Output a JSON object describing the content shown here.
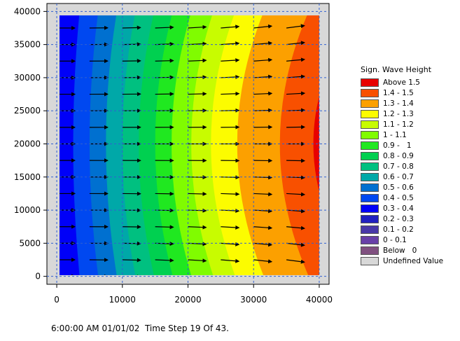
{
  "chart_data": {
    "type": "heatmap",
    "title": "",
    "xlabel": "",
    "ylabel": "",
    "xlim": [
      -1500,
      41500
    ],
    "ylim": [
      -1200,
      41200
    ],
    "x_ticks": [
      0,
      10000,
      20000,
      30000,
      40000
    ],
    "x_tick_labels": [
      "0",
      "10000",
      "20000",
      "30000",
      "40000"
    ],
    "y_ticks": [
      0,
      5000,
      10000,
      15000,
      20000,
      25000,
      30000,
      35000,
      40000
    ],
    "y_tick_labels": [
      "0",
      "5000",
      "10000",
      "15000",
      "20000",
      "25000",
      "30000",
      "35000",
      "40000"
    ],
    "grid": true,
    "data_extent": {
      "x": [
        0,
        40000
      ],
      "y": [
        0,
        40000
      ]
    },
    "legend_position": "right",
    "legend": {
      "title": "Sign. Wave Height",
      "entries": [
        {
          "label": "Above 1.5",
          "color": "#e80000"
        },
        {
          "label": "1.4 - 1.5",
          "color": "#f85000"
        },
        {
          "label": "1.3 - 1.4",
          "color": "#fca000"
        },
        {
          "label": "1.2 - 1.3",
          "color": "#fcfc00"
        },
        {
          "label": "1.1 - 1.2",
          "color": "#c8fc00"
        },
        {
          "label": "1 - 1.1",
          "color": "#80fc00"
        },
        {
          "label": "0.9 -   1",
          "color": "#20e820"
        },
        {
          "label": "0.8 - 0.9",
          "color": "#00d050"
        },
        {
          "label": "0.7 - 0.8",
          "color": "#00c080"
        },
        {
          "label": "0.6 - 0.7",
          "color": "#00a8a8"
        },
        {
          "label": "0.5 - 0.6",
          "color": "#0070d0"
        },
        {
          "label": "0.4 - 0.5",
          "color": "#0048f0"
        },
        {
          "label": "0.3 - 0.4",
          "color": "#0000f8"
        },
        {
          "label": "0.2 - 0.3",
          "color": "#2020c0"
        },
        {
          "label": "0.1 - 0.2",
          "color": "#4838a8"
        },
        {
          "label": "0 - 0.1",
          "color": "#6840a8"
        },
        {
          "label": "Below   0",
          "color": "#805080"
        },
        {
          "label": "Undefined Value",
          "color": "#d8d8d8"
        }
      ]
    }
  },
  "status_text": "6:00:00 AM 01/01/02  Time Step 19 Of 43."
}
